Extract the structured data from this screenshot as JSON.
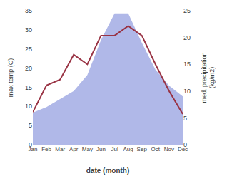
{
  "chart_data": {
    "type": "line",
    "xlabel": "date (month)",
    "ylabel": "max temp (C)",
    "y2label": "med. precipitation\n(kg/m2)",
    "categories": [
      "Jan",
      "Feb",
      "Mar",
      "Apr",
      "May",
      "Jun",
      "Jul",
      "Aug",
      "Sep",
      "Oct",
      "Nov",
      "Dec"
    ],
    "series": [
      {
        "type": "area",
        "axis": "y2",
        "color": "#b0b8e8",
        "values": [
          6.0,
          7.0,
          8.5,
          10.0,
          13.0,
          19.5,
          24.5,
          24.5,
          19.0,
          14.0,
          11.0,
          9.0
        ]
      },
      {
        "type": "line",
        "color": "#993344",
        "values": [
          8.5,
          15.5,
          17.0,
          23.5,
          21.0,
          28.5,
          28.5,
          31.0,
          28.5,
          21.0,
          14.0,
          8.0
        ]
      }
    ],
    "ylim": [
      0,
      35
    ],
    "yticks": [
      0,
      5,
      10,
      15,
      20,
      25,
      30,
      35
    ],
    "y2lim": [
      0,
      25
    ],
    "y2ticks": [
      0,
      5,
      10,
      15,
      20,
      25
    ],
    "grid": false
  }
}
